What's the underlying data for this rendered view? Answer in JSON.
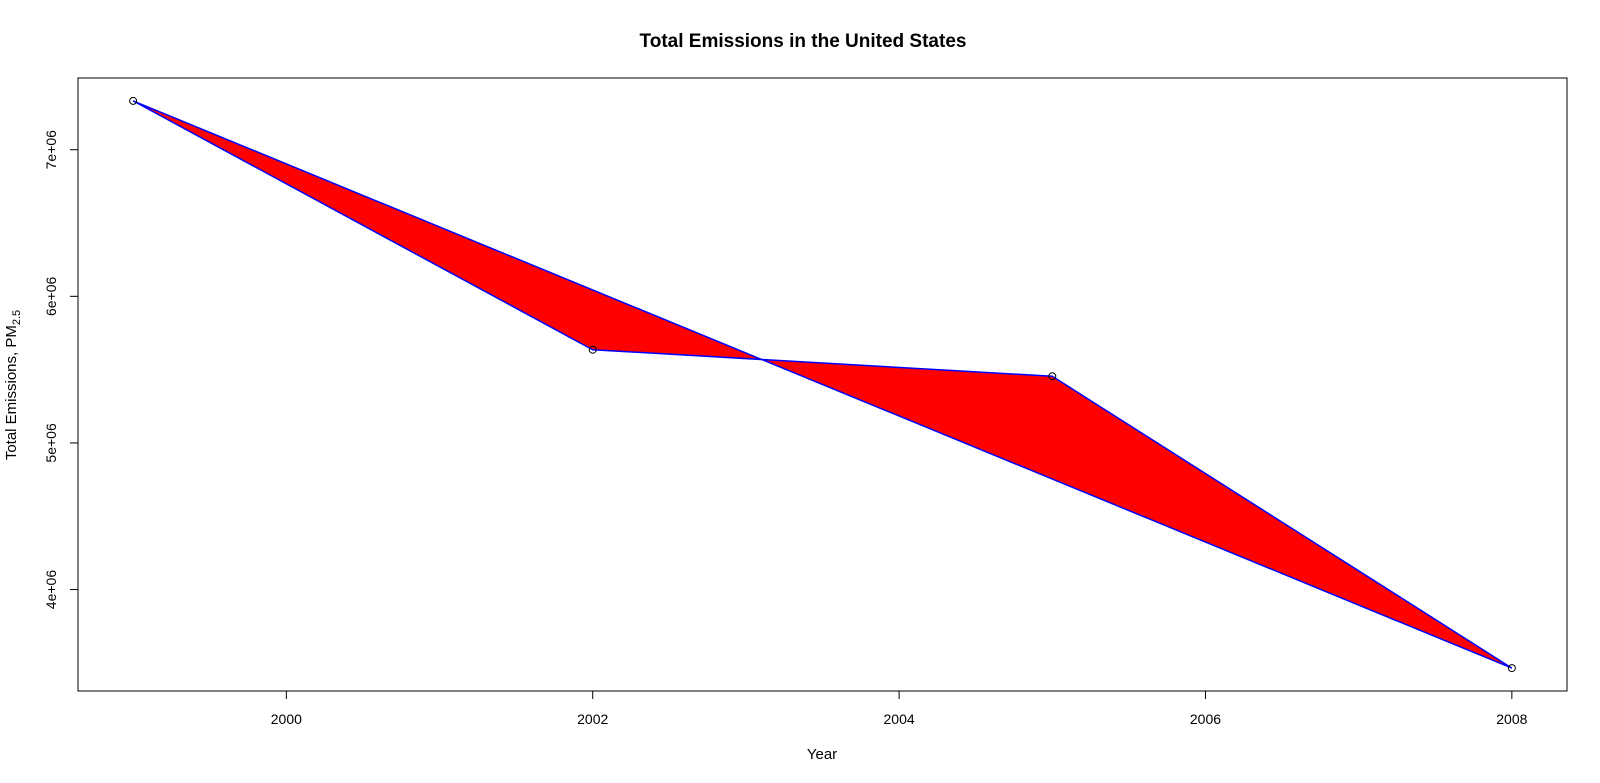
{
  "chart_data": {
    "type": "line",
    "title": "Total Emissions in the United States",
    "xlabel": "Year",
    "ylabel_main": "Total Emissions, PM",
    "ylabel_subscript": "2.5",
    "x": [
      1999,
      2002,
      2005,
      2008
    ],
    "series": [
      {
        "values": [
          7332967,
          5635780,
          5454703,
          3464206
        ]
      }
    ],
    "xticks": [
      2000,
      2002,
      2004,
      2006,
      2008
    ],
    "ytick_values": [
      4000000,
      5000000,
      6000000,
      7000000
    ],
    "ytick_labels": [
      "4e+06",
      "5e+06",
      "6e+06",
      "7e+06"
    ],
    "xlim": [
      1998.64,
      2008.36
    ],
    "ylim": [
      3308051,
      7489122
    ],
    "colors": {
      "fill": "#ff0000",
      "line": "#0000ff",
      "points": "#000000",
      "axes": "#000000"
    },
    "grid": false,
    "legend": "none"
  }
}
